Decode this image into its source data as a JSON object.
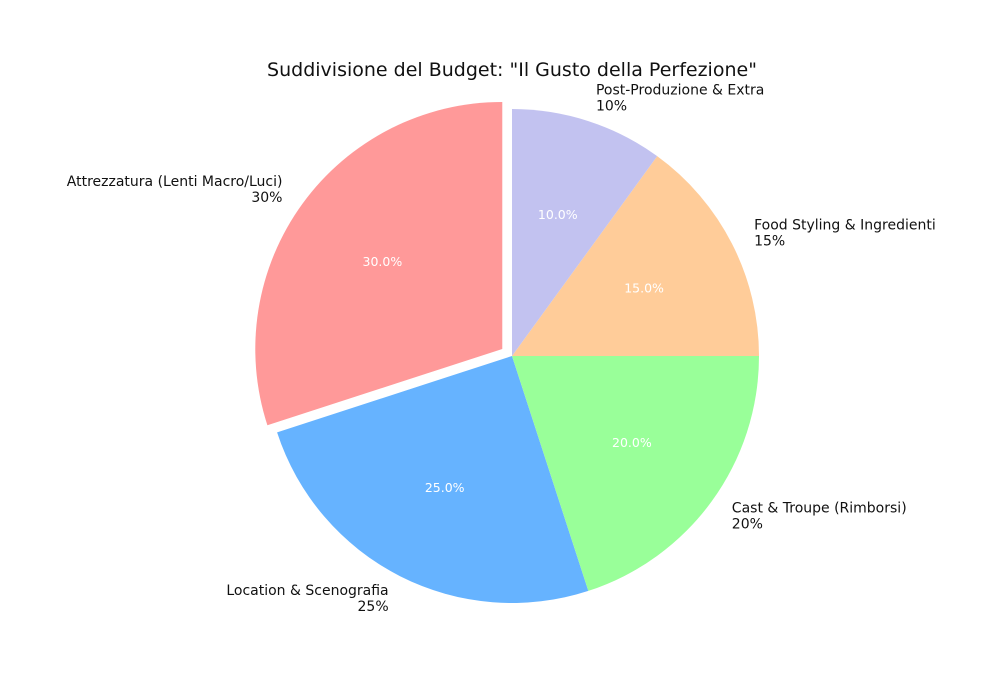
{
  "chart_data": {
    "type": "pie",
    "title": "Suddivisione del Budget: \"Il Gusto della Perfezione\"",
    "slices": [
      {
        "label": "Attrezzatura (Lenti Macro/Luci)",
        "value": 30,
        "outer_pct": "30%",
        "inner_pct": "30.0%",
        "color": "#ff9999",
        "exploded": true
      },
      {
        "label": "Location & Scenografia",
        "value": 25,
        "outer_pct": "25%",
        "inner_pct": "25.0%",
        "color": "#66b3ff",
        "exploded": false
      },
      {
        "label": "Cast & Troupe (Rimborsi)",
        "value": 20,
        "outer_pct": "20%",
        "inner_pct": "20.0%",
        "color": "#99ff99",
        "exploded": false
      },
      {
        "label": "Food Styling & Ingredienti",
        "value": 15,
        "outer_pct": "15%",
        "inner_pct": "15.0%",
        "color": "#ffcc99",
        "exploded": false
      },
      {
        "label": "Post-Produzione & Extra",
        "value": 10,
        "outer_pct": "10%",
        "inner_pct": "10.0%",
        "color": "#c2c2f0",
        "exploded": false
      }
    ],
    "start_angle_deg": 90,
    "direction": "counterclockwise",
    "legend": "none"
  }
}
